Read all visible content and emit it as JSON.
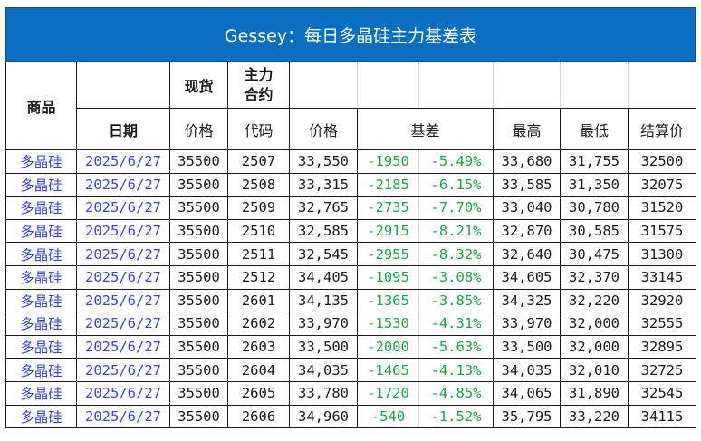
{
  "title": "Gessey：每日多晶硅主力基差表",
  "headers": {
    "product": "商品",
    "spot": "现货",
    "main_contract": "主力\n合约",
    "date": "日期",
    "spot_price": "价格",
    "code": "代码",
    "price": "价格",
    "basis": "基差",
    "high": "最高",
    "low": "最低",
    "settle": "结算价"
  },
  "colors": {
    "title_bg": "#0a6fc2",
    "link_blue": "#3a45d6",
    "basis_green": "#1ea34a"
  },
  "rows": [
    {
      "product": "多晶硅",
      "date": "2025/6/27",
      "spot": "35500",
      "code": "2507",
      "price": "33,550",
      "basis": "-1950",
      "pct": "-5.49%",
      "high": "33,680",
      "low": "31,755",
      "settle": "32500"
    },
    {
      "product": "多晶硅",
      "date": "2025/6/27",
      "spot": "35500",
      "code": "2508",
      "price": "33,315",
      "basis": "-2185",
      "pct": "-6.15%",
      "high": "33,585",
      "low": "31,350",
      "settle": "32075"
    },
    {
      "product": "多晶硅",
      "date": "2025/6/27",
      "spot": "35500",
      "code": "2509",
      "price": "32,765",
      "basis": "-2735",
      "pct": "-7.70%",
      "high": "33,040",
      "low": "30,780",
      "settle": "31520"
    },
    {
      "product": "多晶硅",
      "date": "2025/6/27",
      "spot": "35500",
      "code": "2510",
      "price": "32,585",
      "basis": "-2915",
      "pct": "-8.21%",
      "high": "32,870",
      "low": "30,585",
      "settle": "31575"
    },
    {
      "product": "多晶硅",
      "date": "2025/6/27",
      "spot": "35500",
      "code": "2511",
      "price": "32,545",
      "basis": "-2955",
      "pct": "-8.32%",
      "high": "32,640",
      "low": "30,475",
      "settle": "31300"
    },
    {
      "product": "多晶硅",
      "date": "2025/6/27",
      "spot": "35500",
      "code": "2512",
      "price": "34,405",
      "basis": "-1095",
      "pct": "-3.08%",
      "high": "34,605",
      "low": "32,370",
      "settle": "33145"
    },
    {
      "product": "多晶硅",
      "date": "2025/6/27",
      "spot": "35500",
      "code": "2601",
      "price": "34,135",
      "basis": "-1365",
      "pct": "-3.85%",
      "high": "34,325",
      "low": "32,220",
      "settle": "32920"
    },
    {
      "product": "多晶硅",
      "date": "2025/6/27",
      "spot": "35500",
      "code": "2602",
      "price": "33,970",
      "basis": "-1530",
      "pct": "-4.31%",
      "high": "33,970",
      "low": "32,000",
      "settle": "32555"
    },
    {
      "product": "多晶硅",
      "date": "2025/6/27",
      "spot": "35500",
      "code": "2603",
      "price": "33,500",
      "basis": "-2000",
      "pct": "-5.63%",
      "high": "33,500",
      "low": "32,000",
      "settle": "32895"
    },
    {
      "product": "多晶硅",
      "date": "2025/6/27",
      "spot": "35500",
      "code": "2604",
      "price": "34,035",
      "basis": "-1465",
      "pct": "-4.13%",
      "high": "34,035",
      "low": "32,010",
      "settle": "32725"
    },
    {
      "product": "多晶硅",
      "date": "2025/6/27",
      "spot": "35500",
      "code": "2605",
      "price": "33,780",
      "basis": "-1720",
      "pct": "-4.85%",
      "high": "34,065",
      "low": "31,890",
      "settle": "32545"
    },
    {
      "product": "多晶硅",
      "date": "2025/6/27",
      "spot": "35500",
      "code": "2606",
      "price": "34,960",
      "basis": "-540",
      "pct": "-1.52%",
      "high": "35,795",
      "low": "33,220",
      "settle": "34115"
    }
  ]
}
